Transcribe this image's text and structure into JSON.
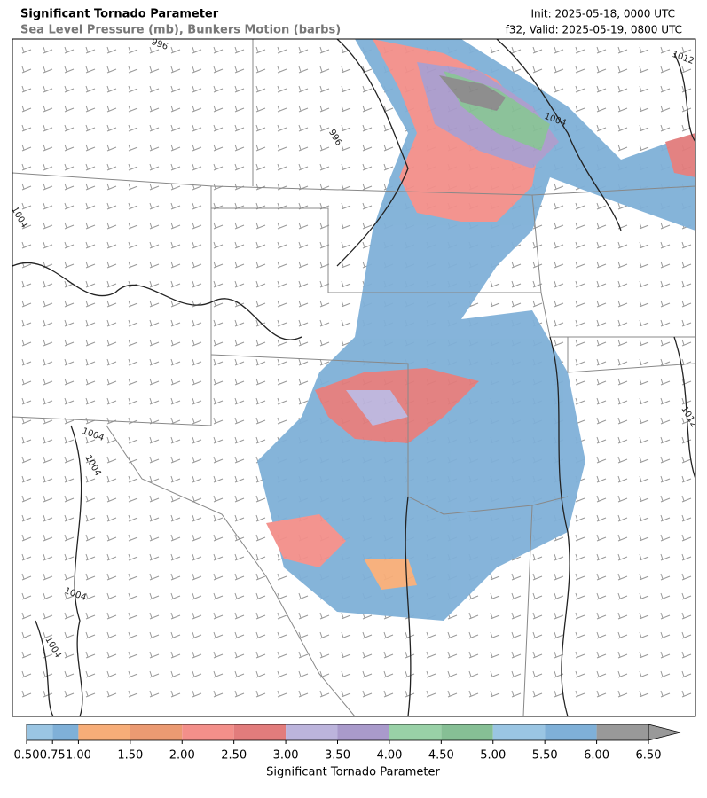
{
  "header": {
    "title": "Significant Tornado Parameter",
    "subtitle": "Sea Level Pressure (mb), Bunkers Motion (barbs)",
    "init": "Init: 2025-05-18, 0000 UTC",
    "valid": "f32, Valid: 2025-05-19, 0800 UTC"
  },
  "map": {
    "contour_labels": [
      996,
      996,
      1004,
      1004,
      1004,
      1004,
      1004,
      1004,
      1012,
      1012
    ]
  },
  "colorbar": {
    "label": "Significant Tornado Parameter",
    "ticks": [
      {
        "value": 0.5,
        "label": "0.50"
      },
      {
        "value": 0.75,
        "label": "0.75"
      },
      {
        "value": 1,
        "label": "1.00"
      },
      {
        "value": 1.5,
        "label": "1.50"
      },
      {
        "value": 2,
        "label": "2.00"
      },
      {
        "value": 2.5,
        "label": "2.50"
      },
      {
        "value": 3,
        "label": "3.00"
      },
      {
        "value": 3.5,
        "label": "3.50"
      },
      {
        "value": 4,
        "label": "4.00"
      },
      {
        "value": 4.5,
        "label": "4.50"
      },
      {
        "value": 5,
        "label": "5.00"
      },
      {
        "value": 5.5,
        "label": "5.50"
      },
      {
        "value": 6,
        "label": "6.00"
      },
      {
        "value": 6.5,
        "label": "6.50"
      }
    ],
    "colors": [
      "#9ac5e3",
      "#7fb0d8",
      "#f7ad78",
      "#eb9a72",
      "#f38f8a",
      "#e27c7c",
      "#bcb4dc",
      "#a99acb",
      "#99d1a7",
      "#86bf95",
      "#9ac5e3",
      "#7fb0d8",
      "#999999"
    ],
    "extend_color": "#999999"
  }
}
